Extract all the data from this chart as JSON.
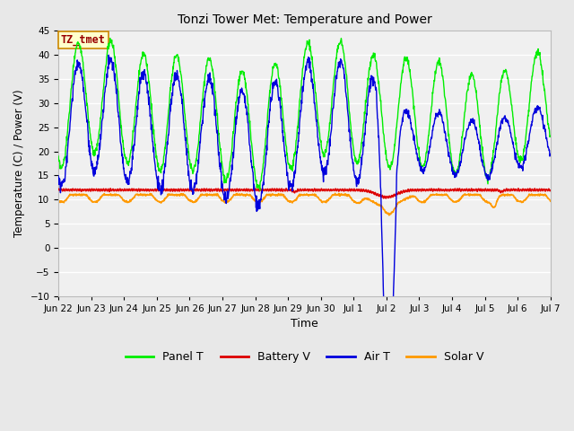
{
  "title": "Tonzi Tower Met: Temperature and Power",
  "xlabel": "Time",
  "ylabel": "Temperature (C) / Power (V)",
  "ylim": [
    -10,
    45
  ],
  "yticks": [
    -10,
    -5,
    0,
    5,
    10,
    15,
    20,
    25,
    30,
    35,
    40,
    45
  ],
  "bg_color": "#e8e8e8",
  "plot_bg_color": "#f0f0f0",
  "annotation_text": "TZ_tmet",
  "annotation_color": "#990000",
  "annotation_bg": "#ffffcc",
  "annotation_border": "#cc8800",
  "series_colors": {
    "panel_t": "#00ee00",
    "battery_v": "#dd0000",
    "air_t": "#0000dd",
    "solar_v": "#ff9900"
  },
  "legend_labels": [
    "Panel T",
    "Battery V",
    "Air T",
    "Solar V"
  ],
  "xtick_labels": [
    "Jun 22",
    "Jun 23",
    "Jun 24",
    "Jun 25",
    "Jun 26",
    "Jun 27",
    "Jun 28",
    "Jun 29",
    "Jun 30",
    "Jul 1",
    "Jul 2",
    "Jul 3",
    "Jul 4",
    "Jul 5",
    "Jul 6",
    "Jul 7"
  ],
  "num_points": 1440
}
